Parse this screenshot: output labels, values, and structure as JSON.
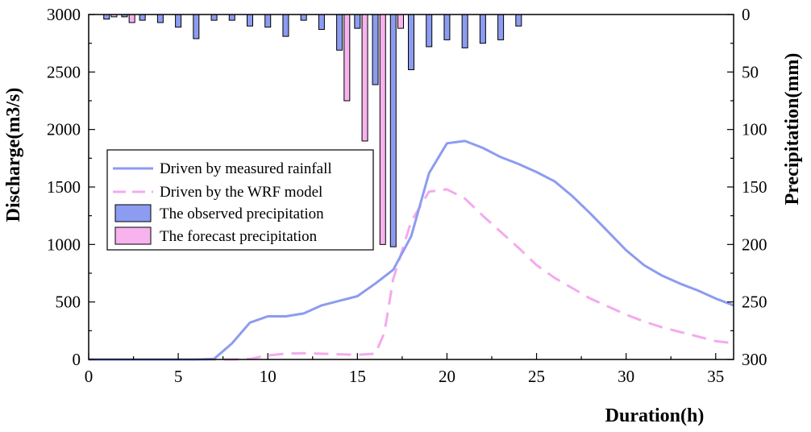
{
  "chart_data": {
    "type": "line",
    "title": "",
    "xlabel": "Duration(h)",
    "ylabel": "Discharge(m3/s)",
    "y2label": "Precipitation(mm)",
    "xlim": [
      0,
      36
    ],
    "ylim": [
      0,
      3000
    ],
    "y2lim": [
      0,
      300
    ],
    "y2_inverted": true,
    "x_ticks": [
      0,
      5,
      10,
      15,
      20,
      25,
      30,
      35
    ],
    "y_ticks": [
      0,
      500,
      1000,
      1500,
      2000,
      2500,
      3000
    ],
    "y2_ticks": [
      0,
      50,
      100,
      150,
      200,
      250,
      300
    ],
    "legend_position": "center-left",
    "series": [
      {
        "name": "Driven by measured rainfall",
        "kind": "line",
        "style": "solid",
        "color": "#8c9cf0",
        "x": [
          0,
          1,
          2,
          3,
          4,
          5,
          6,
          7,
          8,
          9,
          10,
          11,
          12,
          13,
          14,
          15,
          16,
          17,
          18,
          19,
          20,
          21,
          22,
          23,
          24,
          25,
          26,
          27,
          28,
          29,
          30,
          31,
          32,
          33,
          34,
          35,
          36
        ],
        "values": [
          0,
          0,
          0,
          0,
          0,
          0,
          0,
          5,
          140,
          320,
          375,
          375,
          400,
          470,
          510,
          550,
          660,
          780,
          1070,
          1620,
          1880,
          1900,
          1840,
          1760,
          1700,
          1630,
          1550,
          1420,
          1270,
          1110,
          950,
          820,
          730,
          660,
          600,
          530,
          470
        ]
      },
      {
        "name": "Driven by the WRF model",
        "kind": "line",
        "style": "dashed",
        "color": "#f4aaee",
        "x": [
          0,
          1,
          2,
          3,
          4,
          5,
          6,
          7,
          8,
          9,
          10,
          11,
          12,
          13,
          14,
          15,
          16,
          16.5,
          17,
          18,
          19,
          20,
          21,
          22,
          23,
          24,
          25,
          26,
          27,
          28,
          29,
          30,
          31,
          32,
          33,
          34,
          35,
          36
        ],
        "values": [
          0,
          0,
          0,
          0,
          0,
          0,
          0,
          0,
          0,
          5,
          35,
          50,
          55,
          50,
          45,
          40,
          50,
          230,
          700,
          1200,
          1460,
          1480,
          1400,
          1250,
          1110,
          970,
          820,
          710,
          620,
          530,
          460,
          390,
          330,
          280,
          240,
          200,
          160,
          140
        ]
      },
      {
        "name": "The observed precipitation",
        "kind": "bar",
        "axis": "right",
        "color": "#8c9cf0",
        "x": [
          1,
          2,
          3,
          4,
          5,
          6,
          7,
          8,
          9,
          10,
          11,
          12,
          13,
          14,
          15,
          16,
          17,
          18,
          19,
          20,
          21,
          22,
          23,
          24
        ],
        "values": [
          4,
          2,
          5,
          7,
          11,
          21,
          5,
          5,
          10,
          11,
          19,
          5,
          13,
          31,
          12,
          61,
          202,
          48,
          28,
          22,
          29,
          25,
          22,
          10
        ]
      },
      {
        "name": "The forecast precipitation",
        "kind": "bar",
        "axis": "right",
        "color": "#f7b3ee",
        "x": [
          2,
          3,
          15,
          16,
          17,
          18
        ],
        "values": [
          2,
          7,
          75,
          110,
          200,
          12
        ]
      }
    ]
  }
}
